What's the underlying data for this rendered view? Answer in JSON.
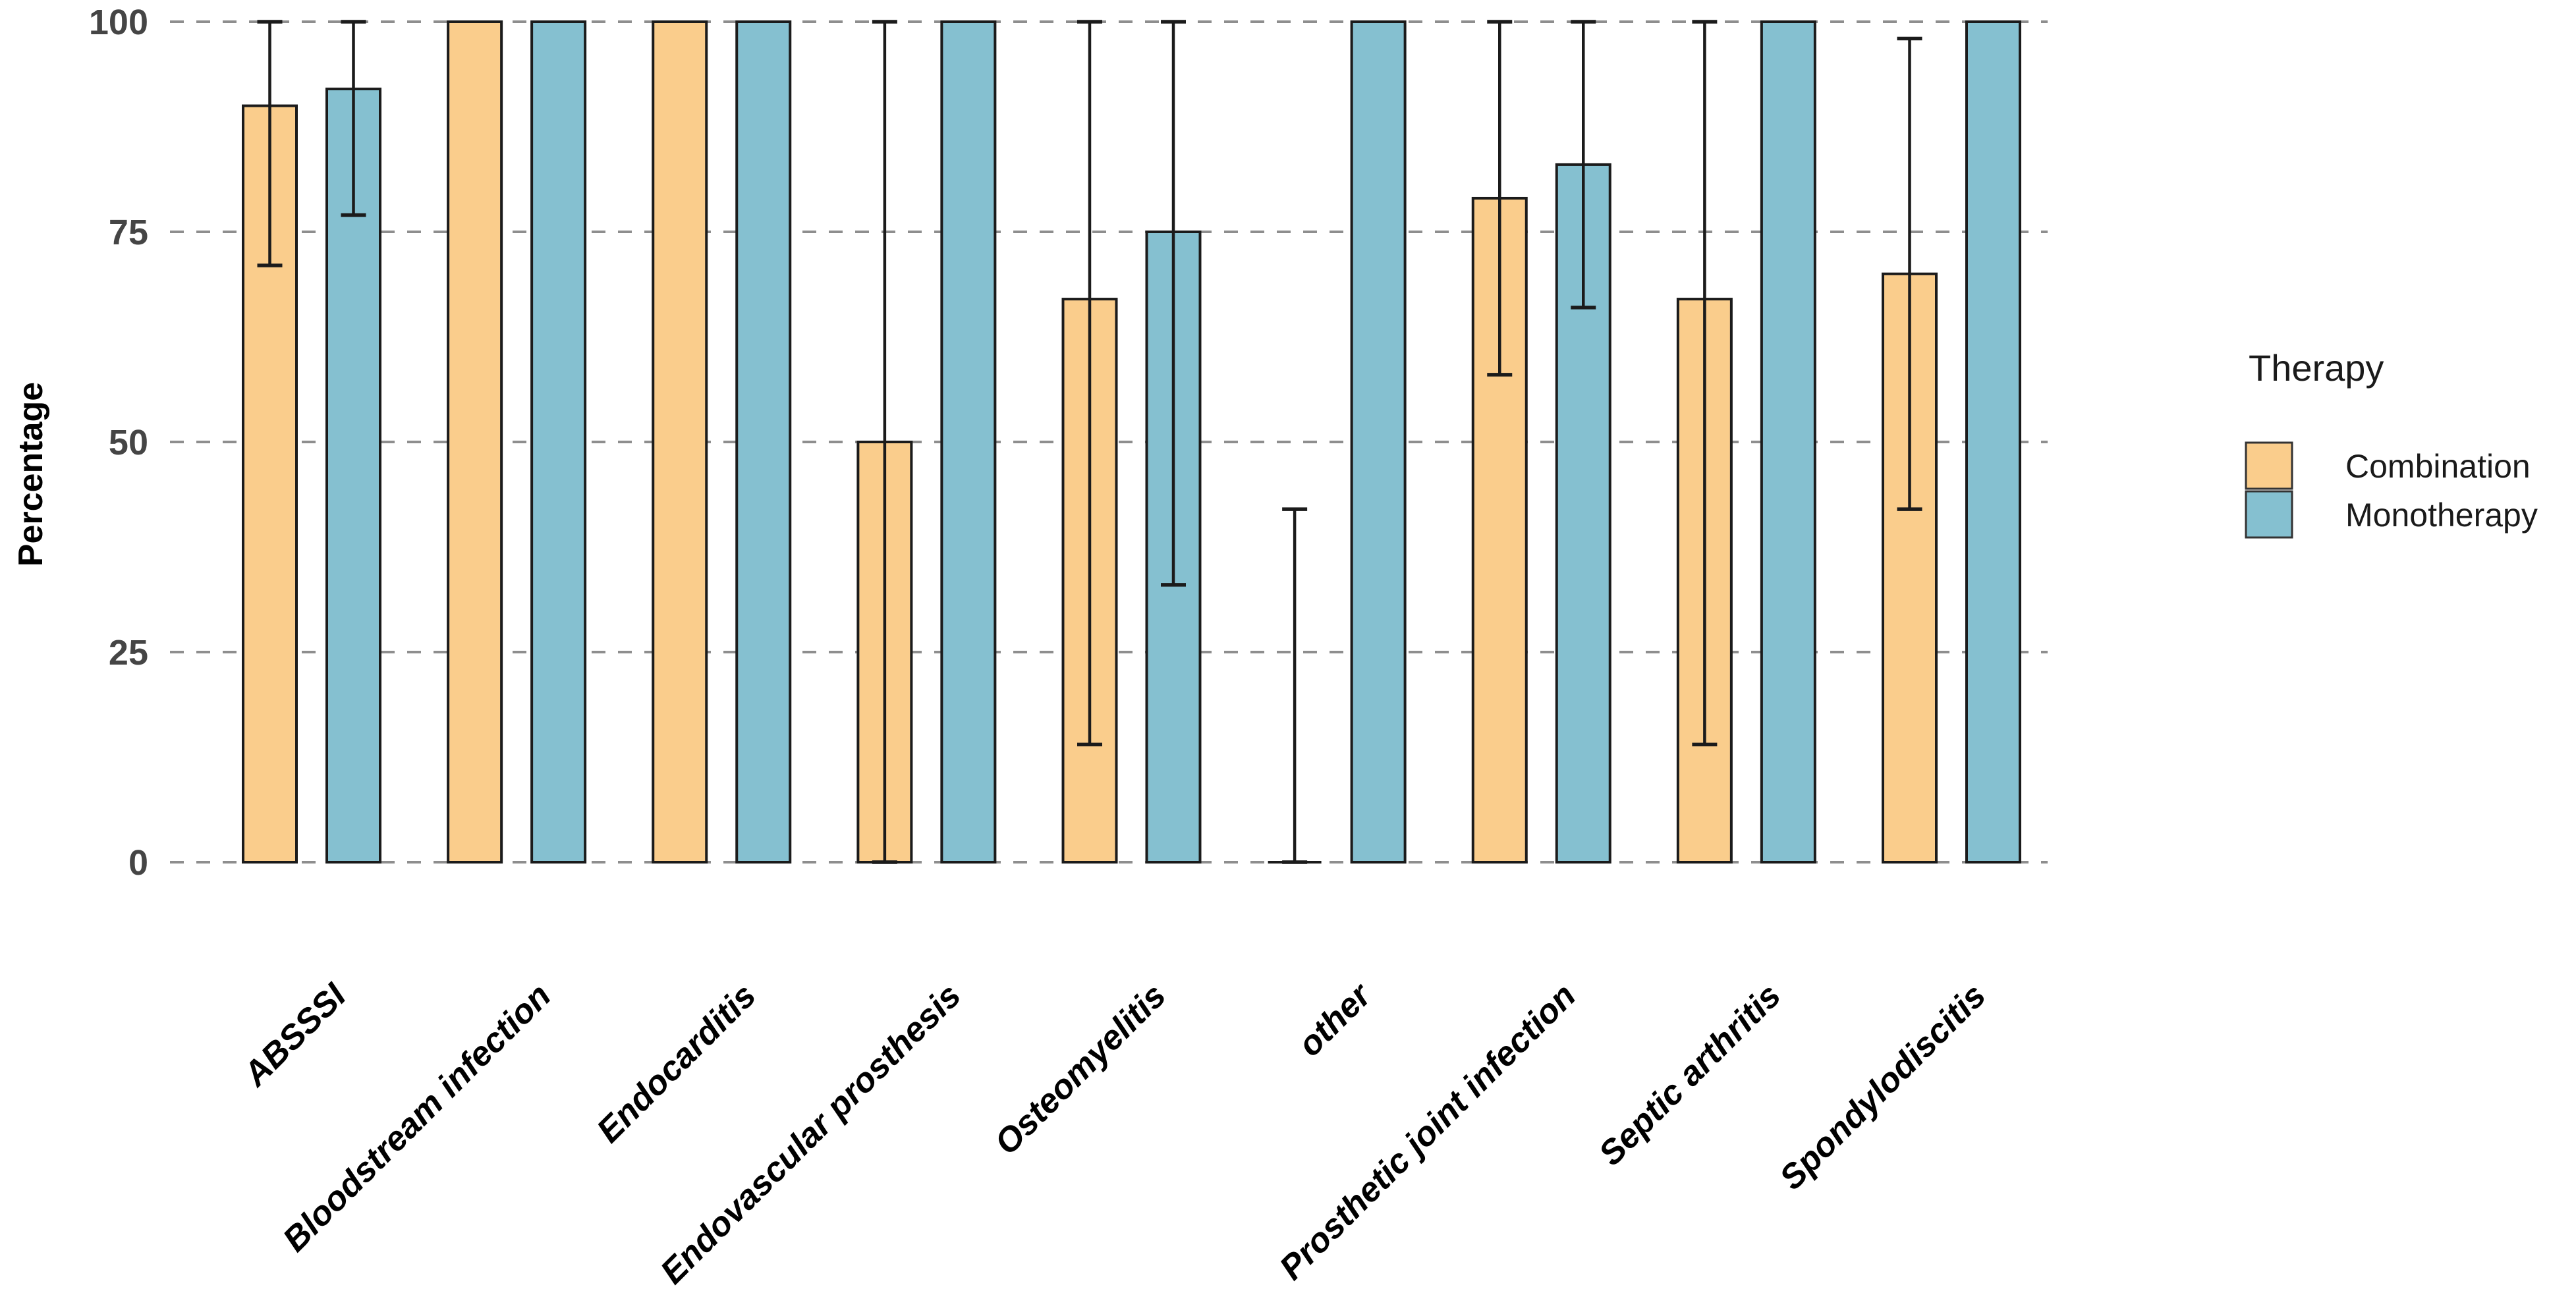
{
  "chart_data": {
    "type": "bar",
    "title": "",
    "xlabel": "",
    "ylabel": "Percentage",
    "ylim": [
      0,
      100
    ],
    "yticks": [
      0,
      25,
      50,
      75,
      100
    ],
    "grid": "horizontal dashed gridlines on, no axis lines, white background",
    "legend_position": "right",
    "legend": {
      "title": "Therapy",
      "entries": [
        {
          "label": "Combination",
          "color": "#FACD8C"
        },
        {
          "label": "Monotherapy",
          "color": "#85C0D0"
        }
      ]
    },
    "categories": [
      "ABSSSI",
      "Bloodstream infection",
      "Endocarditis",
      "Endovascular prosthesis",
      "Osteomyelitis",
      "other",
      "Prosthetic joint infection",
      "Septic arthritis",
      "Spondylodiscitis"
    ],
    "series": [
      {
        "name": "Combination",
        "color": "#FACD8C",
        "values": [
          90,
          100,
          100,
          50,
          67,
          0,
          79,
          67,
          70
        ],
        "error_low": [
          71,
          null,
          null,
          0,
          14,
          0,
          58,
          14,
          42
        ],
        "error_high": [
          100,
          null,
          null,
          100,
          100,
          42,
          100,
          100,
          98
        ]
      },
      {
        "name": "Monotherapy",
        "color": "#85C0D0",
        "values": [
          92,
          100,
          100,
          100,
          75,
          100,
          83,
          100,
          100
        ],
        "error_low": [
          77,
          null,
          null,
          null,
          33,
          null,
          66,
          null,
          null
        ],
        "error_high": [
          100,
          null,
          null,
          null,
          100,
          null,
          100,
          null,
          null
        ]
      }
    ]
  },
  "style_colors": {
    "bar_outline": "#1b1b1b",
    "error_bar": "#1b1b1b",
    "gridline": "#8e8e8e",
    "y_tick_text": "#454545",
    "background": "#ffffff"
  }
}
